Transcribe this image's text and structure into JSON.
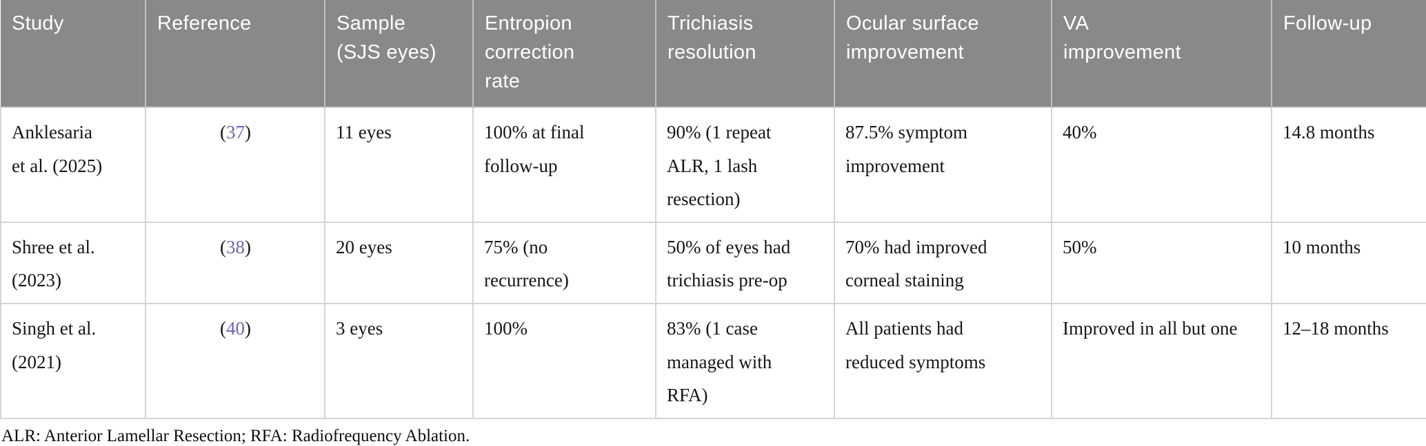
{
  "colors": {
    "header_bg": "#898989",
    "header_text": "#ffffff",
    "header_divider": "#c2c2c2",
    "body_border": "#d4d4d4",
    "body_text": "#161616",
    "reference_link": "#6e63b8"
  },
  "table": {
    "headers": [
      {
        "id": "study",
        "label": "Study"
      },
      {
        "id": "reference",
        "label": "Reference"
      },
      {
        "id": "sample",
        "label": "Sample\n(SJS eyes)"
      },
      {
        "id": "entropion",
        "label": "Entropion\ncorrection\nrate"
      },
      {
        "id": "trichiasis",
        "label": "Trichiasis\nresolution"
      },
      {
        "id": "ocular",
        "label": "Ocular surface\nimprovement"
      },
      {
        "id": "va",
        "label": "VA\nimprovement"
      },
      {
        "id": "followup",
        "label": "Follow-up"
      }
    ],
    "ref_open": "(",
    "ref_close": ")",
    "rows": [
      {
        "study": "Anklesaria\net al. (2025)",
        "reference": "37",
        "sample": "11 eyes",
        "entropion": "100% at final\nfollow-up",
        "trichiasis": "90% (1 repeat\nALR, 1 lash\nresection)",
        "ocular": "87.5% symptom\nimprovement",
        "va": "40%",
        "followup": "14.8 months"
      },
      {
        "study": "Shree et al.\n(2023)",
        "reference": "38",
        "sample": "20 eyes",
        "entropion": "75% (no\nrecurrence)",
        "trichiasis": "50% of eyes had\ntrichiasis pre-op",
        "ocular": "70% had improved\ncorneal staining",
        "va": "50%",
        "followup": "10 months"
      },
      {
        "study": "Singh et al.\n(2021)",
        "reference": "40",
        "sample": "3 eyes",
        "entropion": "100%",
        "trichiasis": "83% (1 case\nmanaged with\nRFA)",
        "ocular": "All patients had\nreduced symptoms",
        "va": "Improved in all but one",
        "followup": "12–18 months"
      }
    ],
    "footnote": "ALR: Anterior Lamellar Resection; RFA: Radiofrequency Ablation."
  }
}
